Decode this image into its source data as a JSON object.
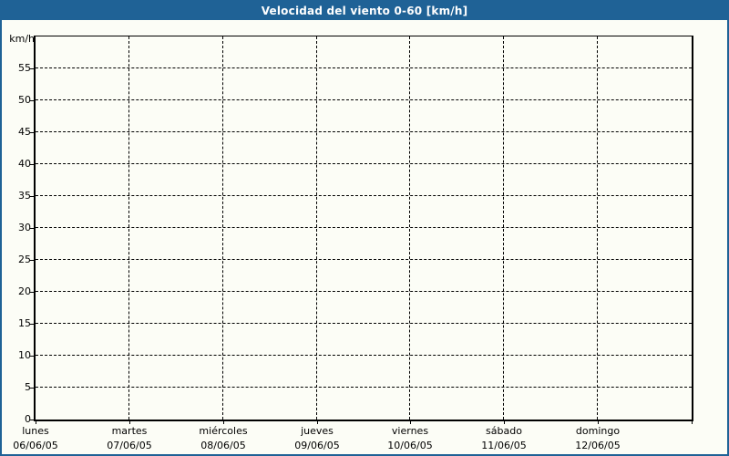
{
  "window": {
    "title": "Velocidad del viento 0-60 [km/h]"
  },
  "colors": {
    "accent_blue": "#1F6296",
    "background": "#FCFDF6",
    "grid": "#000000",
    "title_text": "#FFFFFF"
  },
  "chart_data": {
    "type": "line",
    "title": "Velocidad del viento 0-60 [km/h]",
    "ylabel": "km/h",
    "ylim": [
      0,
      60
    ],
    "ytick_step": 5,
    "yticks": [
      0,
      5,
      10,
      15,
      20,
      25,
      30,
      35,
      40,
      45,
      50,
      55
    ],
    "categories": [
      {
        "day": "lunes",
        "date": "06/06/05"
      },
      {
        "day": "martes",
        "date": "07/06/05"
      },
      {
        "day": "miércoles",
        "date": "08/06/05"
      },
      {
        "day": "jueves",
        "date": "09/06/05"
      },
      {
        "day": "viernes",
        "date": "10/06/05"
      },
      {
        "day": "sábado",
        "date": "11/06/05"
      },
      {
        "day": "domingo",
        "date": "12/06/05"
      }
    ],
    "series": [],
    "grid": {
      "style": "dashed",
      "horizontal": true,
      "vertical": true
    },
    "legend": null
  }
}
